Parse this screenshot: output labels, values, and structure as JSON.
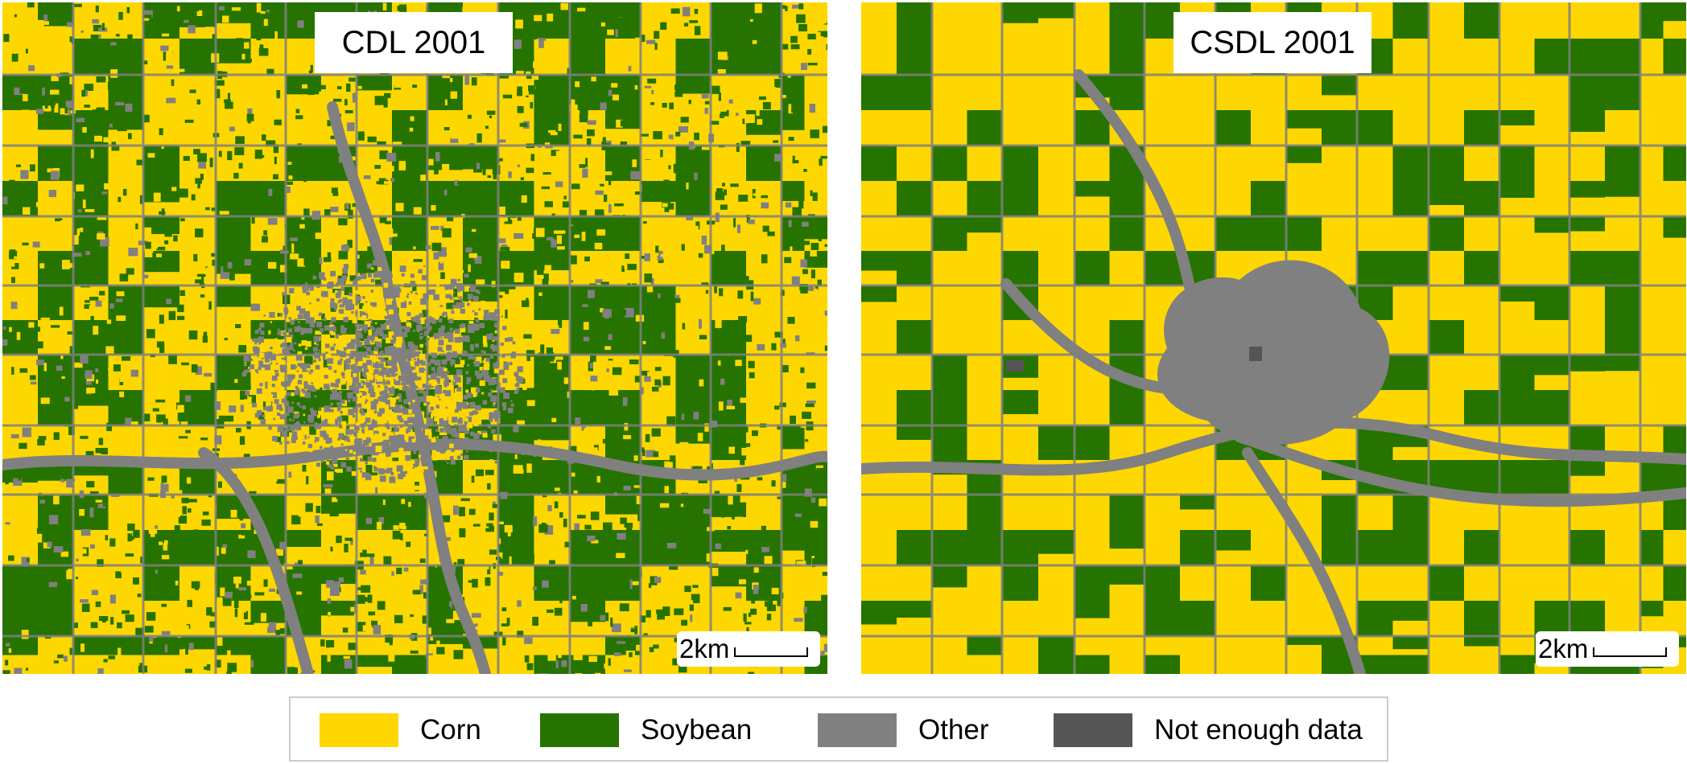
{
  "colors": {
    "corn": "#ffd700",
    "soybean": "#267300",
    "other": "#808080",
    "not_enough_data": "#555555"
  },
  "maps": [
    {
      "title": "CDL 2001",
      "scale_label": "2km"
    },
    {
      "title": "CSDL 2001",
      "scale_label": "2km"
    }
  ],
  "legend": {
    "items": [
      {
        "label": "Corn",
        "color": "#ffd700"
      },
      {
        "label": "Soybean",
        "color": "#267300"
      },
      {
        "label": "Other",
        "color": "#808080"
      },
      {
        "label": "Not enough data",
        "color": "#555555"
      }
    ]
  }
}
